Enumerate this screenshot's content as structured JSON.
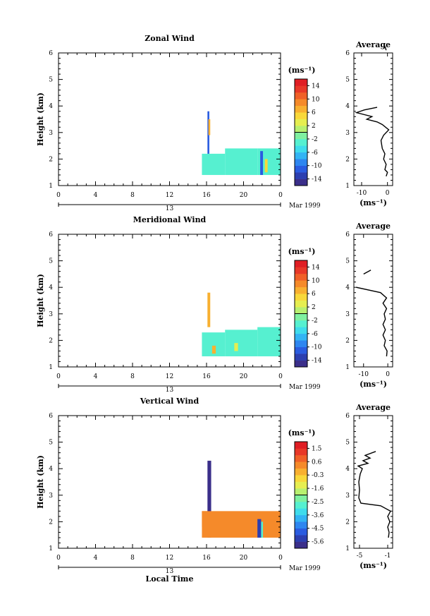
{
  "chart_data": [
    {
      "type": "heatmap",
      "title": "Zonal Wind",
      "ylabel": "Height (km)",
      "xlabel": "",
      "xlim": [
        0,
        24
      ],
      "ylim": [
        1,
        6
      ],
      "x_ticks": [
        "0",
        "4",
        "8",
        "12",
        "16",
        "20",
        "0"
      ],
      "y_ticks": [
        "1",
        "2",
        "3",
        "4",
        "5",
        "6"
      ],
      "date_bar": {
        "day": "13",
        "month": "Mar 1999"
      },
      "colorbar": {
        "unit": "(ms⁻¹)",
        "ticks": [
          "14",
          "10",
          "6",
          "2",
          "-2",
          "-6",
          "-10",
          "-14"
        ],
        "range": [
          -16,
          16
        ]
      },
      "cells": [
        {
          "x0": 16.1,
          "x1": 16.3,
          "y0": 2.0,
          "y1": 3.8,
          "value": -11
        },
        {
          "x0": 16.2,
          "x1": 16.4,
          "y0": 2.9,
          "y1": 3.5,
          "value": 6
        },
        {
          "x0": 15.5,
          "x1": 18.0,
          "y0": 1.4,
          "y1": 2.2,
          "value": -3
        },
        {
          "x0": 18.0,
          "x1": 21.5,
          "y0": 1.4,
          "y1": 2.4,
          "value": -4
        },
        {
          "x0": 21.5,
          "x1": 24.0,
          "y0": 1.4,
          "y1": 2.4,
          "value": -3
        },
        {
          "x0": 21.8,
          "x1": 22.1,
          "y0": 1.4,
          "y1": 2.3,
          "value": -11
        },
        {
          "x0": 22.3,
          "x1": 22.6,
          "y0": 1.5,
          "y1": 2.0,
          "value": 5
        }
      ],
      "average_profile": {
        "title": "Average",
        "xlabel": "(ms⁻¹)",
        "xlim": [
          -13,
          2
        ],
        "ylim": [
          1,
          6
        ],
        "x_ticks": [
          "-10",
          "0"
        ],
        "y_ticks": [
          "1",
          "2",
          "3",
          "4",
          "5",
          "6"
        ],
        "points": [
          [
            -0.5,
            1.35
          ],
          [
            0.0,
            1.5
          ],
          [
            -1.0,
            1.6
          ],
          [
            -0.5,
            1.8
          ],
          [
            -1.5,
            2.0
          ],
          [
            -1.0,
            2.2
          ],
          [
            -2.0,
            2.4
          ],
          [
            -2.5,
            2.7
          ],
          [
            -1.5,
            2.9
          ],
          [
            0.5,
            3.1
          ],
          [
            -2.0,
            3.3
          ],
          [
            -4.0,
            3.4
          ],
          [
            -8.0,
            3.5
          ],
          [
            -6.0,
            3.6
          ],
          [
            -12.0,
            3.75
          ],
          [
            -9.0,
            3.85
          ],
          [
            -4.0,
            3.95
          ]
        ],
        "points_upper": [
          [
            -0.5,
            6.1
          ],
          [
            -0.8,
            6.2
          ],
          [
            -1.0,
            6.25
          ]
        ]
      }
    },
    {
      "type": "heatmap",
      "title": "Meridional Wind",
      "ylabel": "Height (km)",
      "xlabel": "",
      "xlim": [
        0,
        24
      ],
      "ylim": [
        1,
        6
      ],
      "x_ticks": [
        "0",
        "4",
        "8",
        "12",
        "16",
        "20",
        "0"
      ],
      "y_ticks": [
        "1",
        "2",
        "3",
        "4",
        "5",
        "6"
      ],
      "date_bar": {
        "day": "13",
        "month": "Mar 1999"
      },
      "colorbar": {
        "unit": "(ms⁻¹)",
        "ticks": [
          "14",
          "10",
          "6",
          "2",
          "-2",
          "-6",
          "-10",
          "-14"
        ],
        "range": [
          -16,
          16
        ]
      },
      "cells": [
        {
          "x0": 16.1,
          "x1": 16.4,
          "y0": 2.5,
          "y1": 3.8,
          "value": 6
        },
        {
          "x0": 15.5,
          "x1": 18.0,
          "y0": 1.4,
          "y1": 2.3,
          "value": -3
        },
        {
          "x0": 18.0,
          "x1": 21.5,
          "y0": 1.4,
          "y1": 2.4,
          "value": -4
        },
        {
          "x0": 21.5,
          "x1": 24.0,
          "y0": 1.4,
          "y1": 2.5,
          "value": -3
        },
        {
          "x0": 16.6,
          "x1": 17.0,
          "y0": 1.5,
          "y1": 1.8,
          "value": 6
        },
        {
          "x0": 19.0,
          "x1": 19.4,
          "y0": 1.6,
          "y1": 1.9,
          "value": 2
        }
      ],
      "average_profile": {
        "title": "Average",
        "xlabel": "(ms⁻¹)",
        "xlim": [
          -14,
          2
        ],
        "ylim": [
          1,
          6
        ],
        "x_ticks": [
          "-10",
          "0"
        ],
        "y_ticks": [
          "1",
          "2",
          "3",
          "4",
          "5",
          "6"
        ],
        "points": [
          [
            -0.5,
            1.4
          ],
          [
            -0.3,
            1.6
          ],
          [
            -1.5,
            1.8
          ],
          [
            -1.0,
            2.0
          ],
          [
            -2.0,
            2.2
          ],
          [
            -1.0,
            2.4
          ],
          [
            -2.0,
            2.6
          ],
          [
            -1.0,
            2.8
          ],
          [
            -1.5,
            3.0
          ],
          [
            -0.5,
            3.2
          ],
          [
            -2.0,
            3.4
          ],
          [
            -0.5,
            3.6
          ],
          [
            -3.0,
            3.8
          ],
          [
            -13.0,
            4.0
          ]
        ],
        "points_upper": [
          [
            -10.0,
            4.5
          ],
          [
            -7.0,
            4.65
          ]
        ]
      }
    },
    {
      "type": "heatmap",
      "title": "Vertical Wind",
      "ylabel": "Height (km)",
      "xlabel": "Local Time",
      "xlim": [
        0,
        24
      ],
      "ylim": [
        1,
        6
      ],
      "x_ticks": [
        "0",
        "4",
        "8",
        "12",
        "16",
        "20",
        "0"
      ],
      "y_ticks": [
        "1",
        "2",
        "3",
        "4",
        "5",
        "6"
      ],
      "date_bar": {
        "day": "13",
        "month": "Mar 1999"
      },
      "colorbar": {
        "unit": "(ms⁻¹)",
        "ticks": [
          "1.5",
          "0.6",
          "-0.3",
          "-1.6",
          "-2.5",
          "-3.6",
          "-4.5",
          "-5.6"
        ],
        "range": [
          -6.0,
          2.0
        ]
      },
      "cells": [
        {
          "x0": 16.1,
          "x1": 16.5,
          "y0": 1.4,
          "y1": 4.3,
          "value": -5.8
        },
        {
          "x0": 15.5,
          "x1": 24.0,
          "y0": 1.4,
          "y1": 2.4,
          "value": 0.2
        },
        {
          "x0": 15.5,
          "x1": 16.1,
          "y0": 1.8,
          "y1": 2.4,
          "value": 0.0
        },
        {
          "x0": 17.5,
          "x1": 19.5,
          "y0": 1.9,
          "y1": 2.3,
          "value": 0.4
        },
        {
          "x0": 21.5,
          "x1": 21.9,
          "y0": 1.4,
          "y1": 2.1,
          "value": -5.5
        },
        {
          "x0": 21.9,
          "x1": 22.1,
          "y0": 1.4,
          "y1": 2.0,
          "value": -2.8
        }
      ],
      "average_profile": {
        "title": "Average",
        "xlabel": "(ms⁻¹)",
        "xlim": [
          -5.8,
          -0.3
        ],
        "ylim": [
          1,
          6
        ],
        "x_ticks": [
          "-5",
          "-1"
        ],
        "y_ticks": [
          "1",
          "2",
          "3",
          "4",
          "5",
          "6"
        ],
        "points": [
          [
            -0.9,
            1.4
          ],
          [
            -0.8,
            1.6
          ],
          [
            -1.0,
            1.8
          ],
          [
            -0.7,
            2.0
          ],
          [
            -1.0,
            2.2
          ],
          [
            -0.6,
            2.4
          ],
          [
            -2.0,
            2.6
          ],
          [
            -4.8,
            2.7
          ],
          [
            -5.1,
            2.9
          ],
          [
            -5.0,
            3.2
          ],
          [
            -5.1,
            3.5
          ],
          [
            -4.9,
            3.8
          ],
          [
            -4.6,
            4.0
          ],
          [
            -5.2,
            4.1
          ],
          [
            -3.8,
            4.2
          ],
          [
            -4.5,
            4.3
          ],
          [
            -3.5,
            4.4
          ],
          [
            -4.2,
            4.5
          ],
          [
            -2.7,
            4.65
          ]
        ]
      }
    }
  ]
}
